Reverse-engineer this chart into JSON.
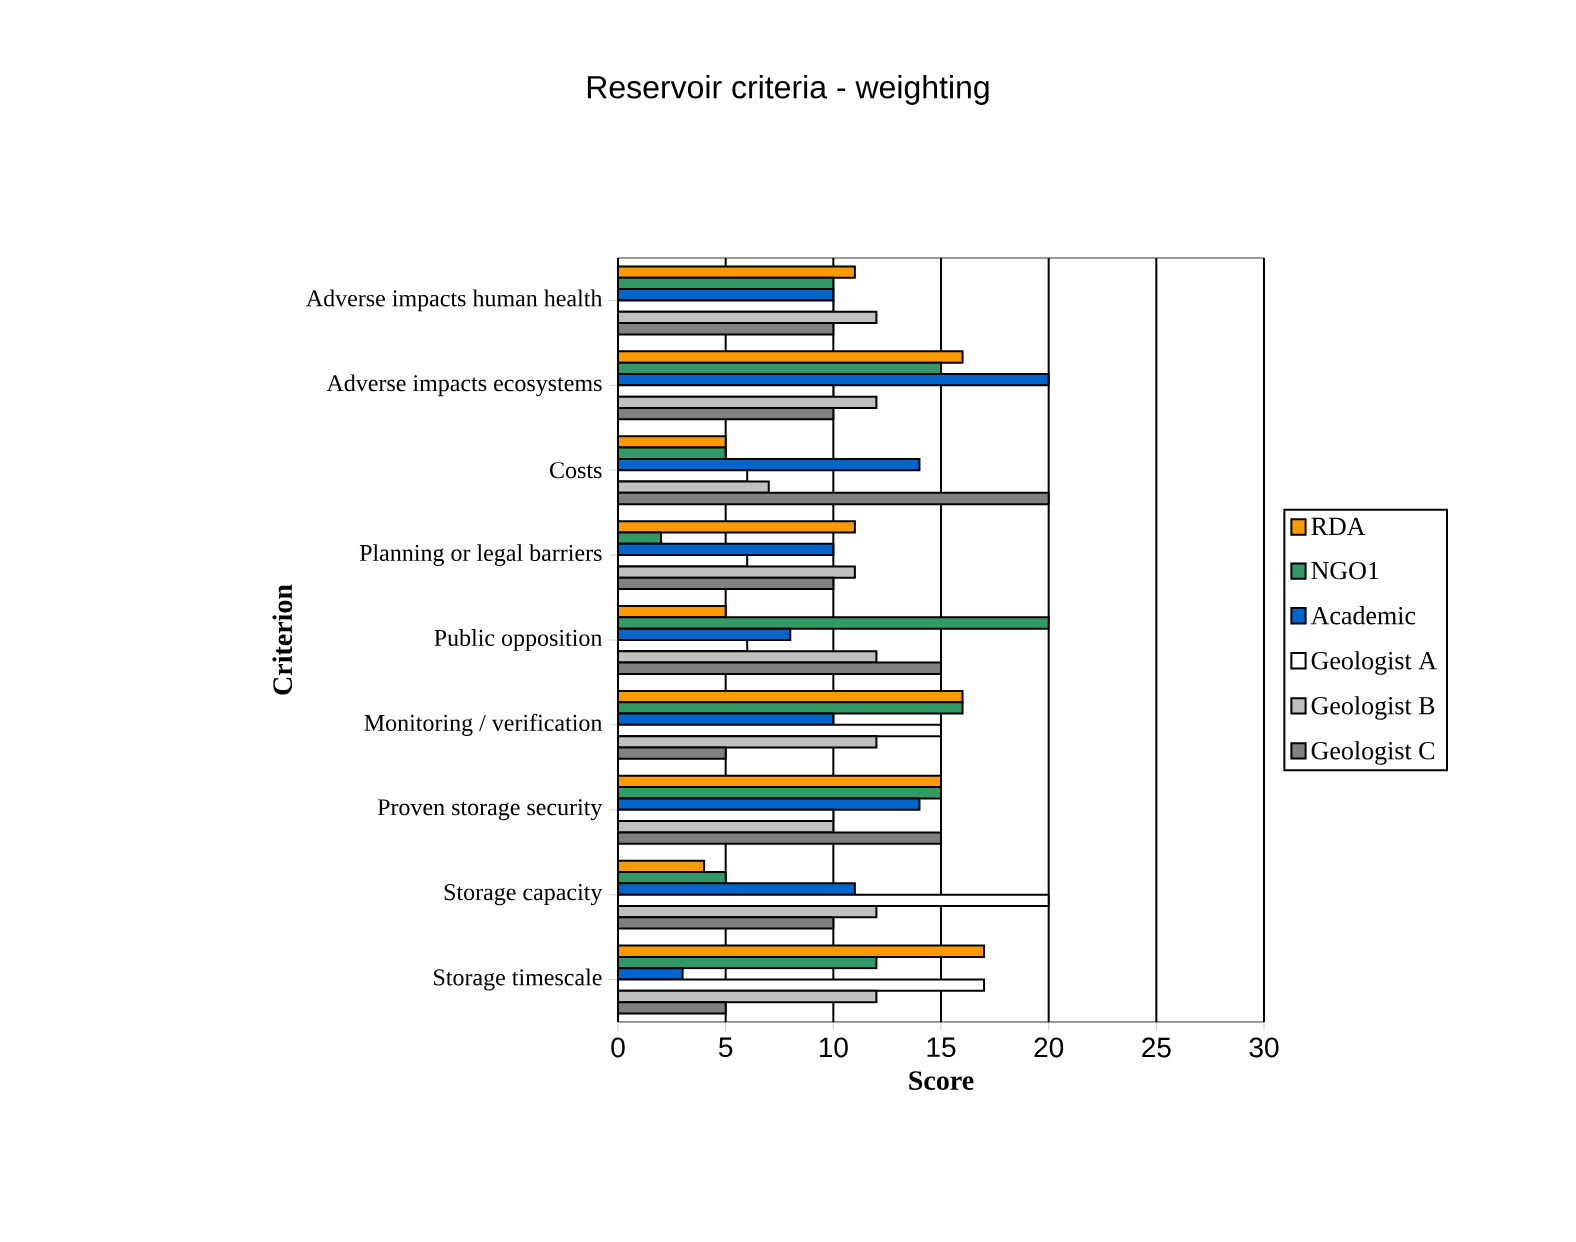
{
  "chart_data": {
    "type": "bar",
    "orientation": "horizontal",
    "title": "Reservoir criteria - weighting",
    "xlabel": "Score",
    "ylabel": "Criterion",
    "categories": [
      "Adverse impacts human health",
      "Adverse impacts ecosystems",
      "Costs",
      "Planning or legal barriers",
      "Public opposition",
      "Monitoring / verification",
      "Proven storage security",
      "Storage capacity",
      "Storage timescale"
    ],
    "series": [
      {
        "name": "RDA",
        "color": "#ff9900",
        "values": [
          11,
          16,
          5,
          11,
          5,
          16,
          15,
          4,
          17
        ]
      },
      {
        "name": "NGO1",
        "color": "#339966",
        "values": [
          10,
          15,
          5,
          2,
          20,
          16,
          15,
          5,
          12
        ]
      },
      {
        "name": "Academic",
        "color": "#0066cc",
        "values": [
          10,
          20,
          14,
          10,
          8,
          10,
          14,
          11,
          3
        ]
      },
      {
        "name": "Geologist A",
        "color": "#ffffff",
        "values": [
          10,
          10,
          6,
          6,
          6,
          15,
          10,
          20,
          17
        ]
      },
      {
        "name": "Geologist B",
        "color": "#c0c0c0",
        "values": [
          12,
          12,
          7,
          11,
          12,
          12,
          10,
          12,
          12
        ]
      },
      {
        "name": "Geologist C",
        "color": "#808080",
        "values": [
          10,
          10,
          20,
          10,
          15,
          5,
          15,
          10,
          5
        ]
      }
    ],
    "xlim": [
      0,
      30
    ],
    "xticks": [
      0,
      5,
      10,
      15,
      20,
      25,
      30
    ],
    "grid": "x",
    "legend": "right"
  }
}
